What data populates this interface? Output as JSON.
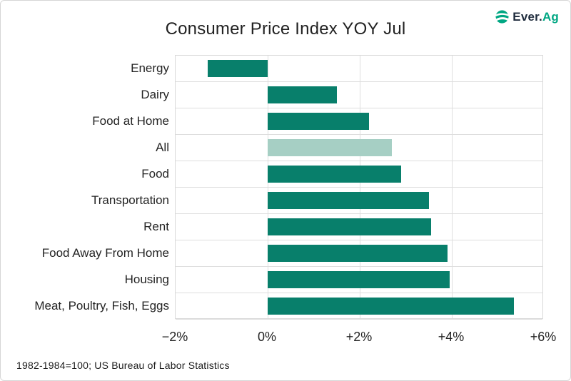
{
  "logo": {
    "brand_primary": "Ever.",
    "brand_accent": "Ag",
    "icon": "wave-globe-icon",
    "primary_color": "#1e2b3c",
    "accent_color": "#00a783"
  },
  "header": {
    "title": "Consumer Price Index YOY Jul"
  },
  "footer": {
    "note": "1982-1984=100; US Bureau of Labor Statistics"
  },
  "chart_data": {
    "type": "bar",
    "orientation": "horizontal",
    "title": "Consumer Price Index YOY Jul",
    "categories": [
      "Energy",
      "Dairy",
      "Food at Home",
      "All",
      "Food",
      "Transportation",
      "Rent",
      "Food Away From Home",
      "Housing",
      "Meat, Poultry, Fish, Eggs"
    ],
    "values": [
      -1.3,
      1.5,
      2.2,
      2.7,
      2.9,
      3.5,
      3.55,
      3.9,
      3.95,
      5.35
    ],
    "unit": "%",
    "xlabel": "",
    "ylabel": "",
    "xlim": [
      -2,
      6
    ],
    "xticks": [
      -2,
      0,
      2,
      4,
      6
    ],
    "xtick_labels": [
      "−2%",
      "0%",
      "+2%",
      "+4%",
      "+6%"
    ],
    "grid": true,
    "legend": "none",
    "bar_color": "#087f6b",
    "highlight_category": "All",
    "highlight_color": "#a6cfc4",
    "source_note": "1982-1984=100; US Bureau of Labor Statistics"
  }
}
